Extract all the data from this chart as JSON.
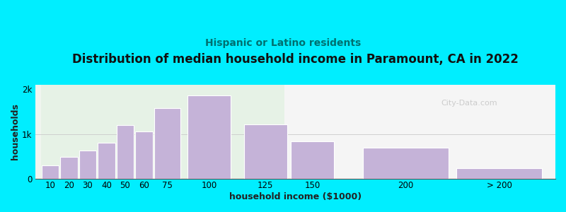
{
  "title": "Distribution of median household income in Paramount, CA in 2022",
  "subtitle": "Hispanic or Latino residents",
  "xlabel": "household income ($1000)",
  "ylabel": "households",
  "bg_outer": "#00eeff",
  "bar_color": "#c5b3d8",
  "bar_edge_color": "#ffffff",
  "categories": [
    "10",
    "20",
    "30",
    "40",
    "50",
    "60",
    "75",
    "100",
    "125",
    "150",
    "200",
    "> 200"
  ],
  "values": [
    310,
    490,
    630,
    800,
    1200,
    1060,
    1580,
    1850,
    1220,
    840,
    690,
    250
  ],
  "bracket_widths": [
    10,
    10,
    10,
    10,
    10,
    10,
    15,
    25,
    25,
    25,
    50,
    50
  ],
  "bracket_starts": [
    5,
    15,
    25,
    35,
    45,
    55,
    65,
    82.5,
    112.5,
    137.5,
    175,
    225
  ],
  "yticks": [
    0,
    1000,
    2000
  ],
  "ytick_labels": [
    "0",
    "1k",
    "2k"
  ],
  "ylim": [
    0,
    2100
  ],
  "title_fontsize": 12,
  "subtitle_fontsize": 10,
  "axis_label_fontsize": 9,
  "tick_fontsize": 8.5,
  "watermark": "City-Data.com"
}
